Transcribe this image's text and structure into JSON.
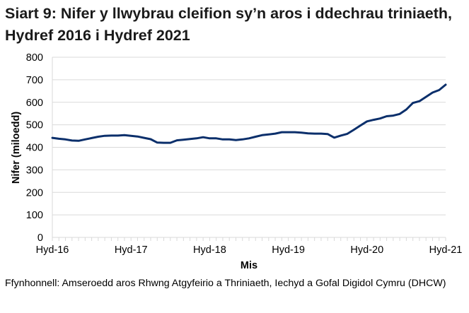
{
  "title": "Siart 9: Nifer y llwybrau cleifion sy’n aros i ddechrau triniaeth, Hydref 2016 i Hydref 2021",
  "source": "Ffynhonnell: Amseroedd aros Rhwng Atgyfeirio a Thriniaeth, Iechyd a Gofal Digidol Cymru (DHCW)",
  "colors": {
    "line": "#0b2f6b",
    "grid": "#d9d9d9",
    "axis_text": "#000000"
  },
  "chart_data": {
    "type": "line",
    "title": "Siart 9: Nifer y llwybrau cleifion sy’n aros i ddechrau triniaeth, Hydref 2016 i Hydref 2021",
    "xlabel": "Mis",
    "ylabel": "Nifer (miloedd)",
    "ylim": [
      0,
      800
    ],
    "yticks": [
      0,
      100,
      200,
      300,
      400,
      500,
      600,
      700,
      800
    ],
    "xtick_labels": [
      "Hyd-16",
      "Hyd-17",
      "Hyd-18",
      "Hyd-19",
      "Hyd-20",
      "Hyd-21"
    ],
    "grid": true,
    "legend": null,
    "x_start": "Hyd-16",
    "x_end": "Hyd-21",
    "series": [
      {
        "name": "Nifer y llwybrau cleifion (miloedd)",
        "values": [
          442,
          438,
          435,
          430,
          429,
          435,
          441,
          447,
          451,
          452,
          452,
          454,
          451,
          448,
          442,
          436,
          421,
          420,
          420,
          431,
          434,
          437,
          440,
          445,
          440,
          440,
          435,
          435,
          432,
          435,
          440,
          447,
          454,
          457,
          461,
          467,
          467,
          467,
          465,
          462,
          461,
          461,
          459,
          443,
          452,
          460,
          478,
          497,
          515,
          522,
          528,
          538,
          541,
          548,
          568,
          597,
          605,
          624,
          643,
          654,
          678
        ]
      }
    ]
  }
}
